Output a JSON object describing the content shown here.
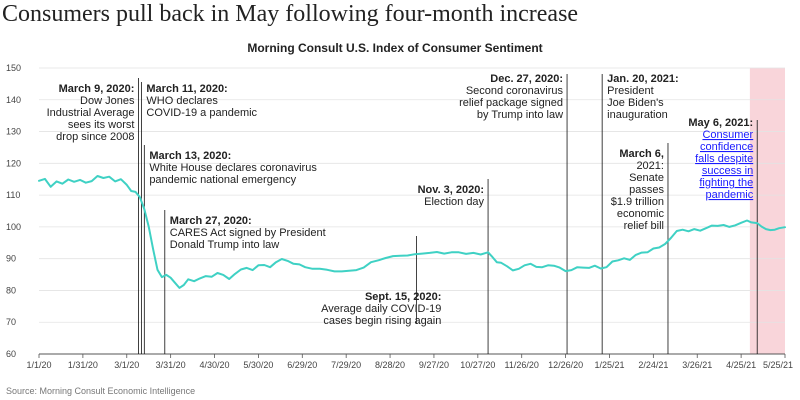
{
  "headline": "Consumers pull back in May following four-month increase",
  "chart_data": {
    "type": "line",
    "title": "Morning Consult U.S. Index of Consumer Sentiment",
    "source": "Source: Morning Consult Economic Intelligence",
    "xlabel": "",
    "ylabel": "",
    "ylim": [
      60,
      150
    ],
    "yticks": [
      60,
      70,
      80,
      90,
      100,
      110,
      120,
      130,
      140,
      150
    ],
    "xlim": [
      "2020-01-01",
      "2021-05-25"
    ],
    "xticks": [
      {
        "date": "2020-01-01",
        "label": "1/1/20"
      },
      {
        "date": "2020-01-31",
        "label": "1/31/20"
      },
      {
        "date": "2020-03-01",
        "label": "3/1/20"
      },
      {
        "date": "2020-03-31",
        "label": "3/31/20"
      },
      {
        "date": "2020-04-30",
        "label": "4/30/20"
      },
      {
        "date": "2020-05-30",
        "label": "5/30/20"
      },
      {
        "date": "2020-06-29",
        "label": "6/29/20"
      },
      {
        "date": "2020-07-29",
        "label": "7/29/20"
      },
      {
        "date": "2020-08-28",
        "label": "8/28/20"
      },
      {
        "date": "2020-09-27",
        "label": "9/27/20"
      },
      {
        "date": "2020-10-27",
        "label": "10/27/20"
      },
      {
        "date": "2020-11-26",
        "label": "11/26/20"
      },
      {
        "date": "2020-12-26",
        "label": "12/26/20"
      },
      {
        "date": "2021-01-25",
        "label": "1/25/21"
      },
      {
        "date": "2021-02-24",
        "label": "2/24/21"
      },
      {
        "date": "2021-03-26",
        "label": "3/26/21"
      },
      {
        "date": "2021-04-25",
        "label": "4/25/21"
      },
      {
        "date": "2021-05-25",
        "label": "5/25/21"
      }
    ],
    "highlight_region": {
      "start": "2021-05-01",
      "end": "2021-05-25",
      "color": "#f9d5da"
    },
    "series": [
      {
        "name": "Index of Consumer Sentiment",
        "color": "#3fd1c4",
        "points": [
          [
            "2020-01-01",
            114.5
          ],
          [
            "2020-01-05",
            115.1
          ],
          [
            "2020-01-09",
            112.6
          ],
          [
            "2020-01-13",
            114.3
          ],
          [
            "2020-01-17",
            113.6
          ],
          [
            "2020-01-21",
            114.9
          ],
          [
            "2020-01-25",
            114.2
          ],
          [
            "2020-01-29",
            114.8
          ],
          [
            "2020-02-02",
            113.9
          ],
          [
            "2020-02-06",
            114.4
          ],
          [
            "2020-02-10",
            116.0
          ],
          [
            "2020-02-14",
            115.4
          ],
          [
            "2020-02-18",
            115.8
          ],
          [
            "2020-02-22",
            114.3
          ],
          [
            "2020-02-26",
            115.0
          ],
          [
            "2020-03-01",
            113.2
          ],
          [
            "2020-03-04",
            111.3
          ],
          [
            "2020-03-07",
            111.0
          ],
          [
            "2020-03-10",
            109.3
          ],
          [
            "2020-03-13",
            105.6
          ],
          [
            "2020-03-16",
            100.1
          ],
          [
            "2020-03-19",
            93.0
          ],
          [
            "2020-03-22",
            86.5
          ],
          [
            "2020-03-25",
            84.2
          ],
          [
            "2020-03-28",
            84.9
          ],
          [
            "2020-03-31",
            84.0
          ],
          [
            "2020-04-03",
            82.4
          ],
          [
            "2020-04-06",
            80.8
          ],
          [
            "2020-04-09",
            81.7
          ],
          [
            "2020-04-12",
            83.5
          ],
          [
            "2020-04-16",
            82.9
          ],
          [
            "2020-04-20",
            83.8
          ],
          [
            "2020-04-24",
            84.5
          ],
          [
            "2020-04-28",
            84.3
          ],
          [
            "2020-05-02",
            85.5
          ],
          [
            "2020-05-06",
            84.9
          ],
          [
            "2020-05-10",
            83.6
          ],
          [
            "2020-05-14",
            85.2
          ],
          [
            "2020-05-18",
            86.6
          ],
          [
            "2020-05-22",
            87.1
          ],
          [
            "2020-05-26",
            86.4
          ],
          [
            "2020-05-30",
            87.9
          ],
          [
            "2020-06-03",
            88.0
          ],
          [
            "2020-06-07",
            87.3
          ],
          [
            "2020-06-11",
            88.9
          ],
          [
            "2020-06-15",
            89.9
          ],
          [
            "2020-06-19",
            89.3
          ],
          [
            "2020-06-23",
            88.4
          ],
          [
            "2020-06-27",
            88.2
          ],
          [
            "2020-07-01",
            87.3
          ],
          [
            "2020-07-06",
            86.8
          ],
          [
            "2020-07-11",
            86.8
          ],
          [
            "2020-07-16",
            86.5
          ],
          [
            "2020-07-21",
            86.0
          ],
          [
            "2020-07-26",
            86.0
          ],
          [
            "2020-07-31",
            86.2
          ],
          [
            "2020-08-05",
            86.4
          ],
          [
            "2020-08-10",
            87.2
          ],
          [
            "2020-08-15",
            88.9
          ],
          [
            "2020-08-20",
            89.5
          ],
          [
            "2020-08-25",
            90.2
          ],
          [
            "2020-08-30",
            90.8
          ],
          [
            "2020-09-04",
            90.9
          ],
          [
            "2020-09-09",
            91.0
          ],
          [
            "2020-09-14",
            91.4
          ],
          [
            "2020-09-19",
            91.6
          ],
          [
            "2020-09-24",
            91.8
          ],
          [
            "2020-09-29",
            92.1
          ],
          [
            "2020-10-04",
            91.6
          ],
          [
            "2020-10-09",
            92.0
          ],
          [
            "2020-10-14",
            92.0
          ],
          [
            "2020-10-19",
            91.5
          ],
          [
            "2020-10-24",
            91.8
          ],
          [
            "2020-10-29",
            91.3
          ],
          [
            "2020-11-03",
            92.0
          ],
          [
            "2020-11-06",
            90.5
          ],
          [
            "2020-11-09",
            88.9
          ],
          [
            "2020-11-12",
            88.7
          ],
          [
            "2020-11-16",
            87.6
          ],
          [
            "2020-11-20",
            86.3
          ],
          [
            "2020-11-24",
            86.8
          ],
          [
            "2020-11-28",
            87.9
          ],
          [
            "2020-12-02",
            88.4
          ],
          [
            "2020-12-06",
            87.4
          ],
          [
            "2020-12-10",
            87.3
          ],
          [
            "2020-12-14",
            87.9
          ],
          [
            "2020-12-18",
            87.8
          ],
          [
            "2020-12-22",
            87.2
          ],
          [
            "2020-12-26",
            86.1
          ],
          [
            "2020-12-30",
            86.4
          ],
          [
            "2021-01-03",
            87.3
          ],
          [
            "2021-01-07",
            87.2
          ],
          [
            "2021-01-11",
            87.1
          ],
          [
            "2021-01-15",
            87.8
          ],
          [
            "2021-01-19",
            86.9
          ],
          [
            "2021-01-23",
            87.3
          ],
          [
            "2021-01-27",
            89.1
          ],
          [
            "2021-01-31",
            89.5
          ],
          [
            "2021-02-04",
            90.1
          ],
          [
            "2021-02-08",
            89.6
          ],
          [
            "2021-02-12",
            91.2
          ],
          [
            "2021-02-16",
            91.9
          ],
          [
            "2021-02-20",
            92.0
          ],
          [
            "2021-02-24",
            93.2
          ],
          [
            "2021-02-28",
            93.5
          ],
          [
            "2021-03-04",
            94.6
          ],
          [
            "2021-03-08",
            96.5
          ],
          [
            "2021-03-12",
            98.7
          ],
          [
            "2021-03-16",
            99.1
          ],
          [
            "2021-03-20",
            98.6
          ],
          [
            "2021-03-24",
            99.3
          ],
          [
            "2021-03-28",
            98.8
          ],
          [
            "2021-04-01",
            99.6
          ],
          [
            "2021-04-05",
            100.4
          ],
          [
            "2021-04-09",
            100.3
          ],
          [
            "2021-04-13",
            100.6
          ],
          [
            "2021-04-17",
            100.0
          ],
          [
            "2021-04-21",
            100.5
          ],
          [
            "2021-04-25",
            101.3
          ],
          [
            "2021-04-29",
            102.0
          ],
          [
            "2021-05-02",
            101.4
          ],
          [
            "2021-05-06",
            101.2
          ],
          [
            "2021-05-09",
            100.1
          ],
          [
            "2021-05-12",
            99.3
          ],
          [
            "2021-05-15",
            99.0
          ],
          [
            "2021-05-18",
            99.1
          ],
          [
            "2021-05-21",
            99.6
          ],
          [
            "2021-05-25",
            99.9
          ]
        ]
      }
    ],
    "annotations": [
      {
        "date": "2020-03-09",
        "title": "March 9, 2020:",
        "lines": [
          "Dow Jones",
          "Industrial Average",
          "sees its worst",
          "drop since 2008"
        ],
        "side": "left",
        "link": false
      },
      {
        "date": "2020-03-11",
        "title": "March 11, 2020:",
        "lines": [
          "WHO declares",
          "COVID-19 a pandemic"
        ],
        "side": "right",
        "link": false
      },
      {
        "date": "2020-03-13",
        "title": "March 13, 2020:",
        "lines": [
          "White House declares coronavirus",
          "pandemic national emergency"
        ],
        "side": "right",
        "link": false
      },
      {
        "date": "2020-03-27",
        "title": "March 27, 2020:",
        "lines": [
          "CARES Act signed by President",
          "Donald Trump into law"
        ],
        "side": "right",
        "link": false
      },
      {
        "date": "2020-09-15",
        "title": "Sept. 15, 2020:",
        "lines": [
          "Average daily COVID-19",
          "cases begin rising again"
        ],
        "side": "left",
        "link": false
      },
      {
        "date": "2020-11-03",
        "title": "Nov. 3, 2020:",
        "lines": [
          "Election day"
        ],
        "side": "left",
        "link": false
      },
      {
        "date": "2020-12-27",
        "title": "Dec. 27, 2020:",
        "lines": [
          "Second coronavirus",
          "relief package signed",
          "by Trump into law"
        ],
        "side": "left",
        "link": false
      },
      {
        "date": "2021-01-20",
        "title": "Jan. 20, 2021:",
        "lines": [
          "President",
          "Joe Biden's",
          "inauguration"
        ],
        "side": "right",
        "link": false
      },
      {
        "date": "2021-03-06",
        "title": "March 6,",
        "lines": [
          "2021:",
          "Senate",
          "passes",
          "$1.9 trillion",
          "economic",
          "relief bill"
        ],
        "side": "left",
        "link": false
      },
      {
        "date": "2021-05-06",
        "title": "May 6, 2021:",
        "lines": [
          "Consumer",
          "confidence",
          "falls despite",
          "success in",
          "fighting the",
          "pandemic"
        ],
        "side": "left",
        "link": true
      }
    ]
  }
}
